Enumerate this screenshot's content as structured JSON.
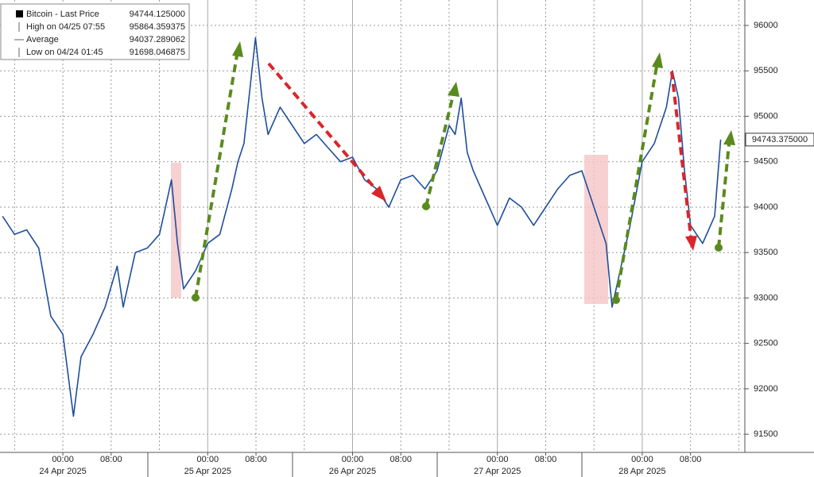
{
  "chart_data": {
    "type": "line",
    "legend": [
      {
        "name": "Bitcoin - Last Price",
        "value": "94744.125000"
      },
      {
        "name": "High on 04/25 07:55",
        "value": "95864.359375"
      },
      {
        "name": "Average",
        "value": "94037.289062"
      },
      {
        "name": "Low on 04/24 01:45",
        "value": "91698.046875"
      }
    ],
    "last_value_tag": {
      "value": 94743.375,
      "label": "94743.375000"
    },
    "xlim": [
      "2025-04-23 13:35",
      "2025-04-28 17:00"
    ],
    "ylim": [
      91300,
      96280
    ],
    "yticks": [
      91500,
      92000,
      92500,
      93000,
      93500,
      94000,
      94500,
      95000,
      95500,
      96000
    ],
    "xticks": [
      {
        "value": "2025-04-24 00:00",
        "label": "00:00"
      },
      {
        "value": "2025-04-24 08:00",
        "label": "08:00"
      },
      {
        "value": "2025-04-25 00:00",
        "label": "00:00"
      },
      {
        "value": "2025-04-25 08:00",
        "label": "08:00"
      },
      {
        "value": "2025-04-26 00:00",
        "label": "00:00"
      },
      {
        "value": "2025-04-26 08:00",
        "label": "08:00"
      },
      {
        "value": "2025-04-27 00:00",
        "label": "00:00"
      },
      {
        "value": "2025-04-27 08:00",
        "label": "08:00"
      },
      {
        "value": "2025-04-28 00:00",
        "label": "00:00"
      },
      {
        "value": "2025-04-28 08:00",
        "label": "08:00"
      }
    ],
    "x_minor_grid": [
      "2025-04-23 16:00",
      "2025-04-24 16:00",
      "2025-04-25 16:00",
      "2025-04-26 16:00",
      "2025-04-27 16:00",
      "2025-04-28 16:00"
    ],
    "date_labels": [
      {
        "value": "2025-04-24 00:00",
        "label": "24 Apr 2025"
      },
      {
        "value": "2025-04-25 00:00",
        "label": "25 Apr 2025"
      },
      {
        "value": "2025-04-26 00:00",
        "label": "26 Apr 2025"
      },
      {
        "value": "2025-04-27 00:00",
        "label": "27 Apr 2025"
      },
      {
        "value": "2025-04-28 00:00",
        "label": "28 Apr 2025"
      }
    ],
    "grid": true,
    "series": [
      {
        "name": "Bitcoin",
        "color": "#1f4e9c",
        "x": [
          "2025-04-23 14:00",
          "2025-04-23 16:00",
          "2025-04-23 18:00",
          "2025-04-23 20:00",
          "2025-04-23 22:00",
          "2025-04-24 00:00",
          "2025-04-24 01:45",
          "2025-04-24 03:00",
          "2025-04-24 05:00",
          "2025-04-24 07:00",
          "2025-04-24 09:00",
          "2025-04-24 10:00",
          "2025-04-24 12:00",
          "2025-04-24 14:00",
          "2025-04-24 16:00",
          "2025-04-24 17:00",
          "2025-04-24 18:00",
          "2025-04-24 19:00",
          "2025-04-24 20:00",
          "2025-04-24 22:00",
          "2025-04-25 00:00",
          "2025-04-25 02:00",
          "2025-04-25 04:00",
          "2025-04-25 05:00",
          "2025-04-25 06:00",
          "2025-04-25 07:00",
          "2025-04-25 07:55",
          "2025-04-25 09:00",
          "2025-04-25 10:00",
          "2025-04-25 12:00",
          "2025-04-25 14:00",
          "2025-04-25 16:00",
          "2025-04-25 18:00",
          "2025-04-25 20:00",
          "2025-04-25 22:00",
          "2025-04-26 00:00",
          "2025-04-26 02:00",
          "2025-04-26 04:00",
          "2025-04-26 06:00",
          "2025-04-26 08:00",
          "2025-04-26 10:00",
          "2025-04-26 12:00",
          "2025-04-26 14:00",
          "2025-04-26 16:00",
          "2025-04-26 17:00",
          "2025-04-26 18:00",
          "2025-04-26 19:00",
          "2025-04-26 20:00",
          "2025-04-26 22:00",
          "2025-04-27 00:00",
          "2025-04-27 02:00",
          "2025-04-27 04:00",
          "2025-04-27 06:00",
          "2025-04-27 08:00",
          "2025-04-27 10:00",
          "2025-04-27 12:00",
          "2025-04-27 14:00",
          "2025-04-27 16:00",
          "2025-04-27 18:00",
          "2025-04-27 19:00",
          "2025-04-27 20:00",
          "2025-04-27 22:00",
          "2025-04-28 00:00",
          "2025-04-28 02:00",
          "2025-04-28 04:00",
          "2025-04-28 05:00",
          "2025-04-28 06:00",
          "2025-04-28 07:00",
          "2025-04-28 08:00",
          "2025-04-28 10:00",
          "2025-04-28 12:00",
          "2025-04-28 13:00"
        ],
        "values": [
          93900,
          93700,
          93750,
          93550,
          92800,
          92600,
          91698,
          92350,
          92600,
          92900,
          93350,
          92900,
          93500,
          93550,
          93700,
          94000,
          94300,
          93600,
          93100,
          93300,
          93600,
          93700,
          94200,
          94500,
          94700,
          95300,
          95864,
          95200,
          94800,
          95100,
          94900,
          94700,
          94800,
          94650,
          94500,
          94550,
          94300,
          94200,
          94000,
          94300,
          94350,
          94200,
          94400,
          94900,
          94800,
          95200,
          94600,
          94400,
          94100,
          93800,
          94100,
          94000,
          93800,
          94000,
          94200,
          94350,
          94400,
          94000,
          93600,
          92900,
          93200,
          93800,
          94500,
          94700,
          95100,
          95500,
          95200,
          94400,
          93800,
          93600,
          93900,
          94744
        ]
      }
    ]
  }
}
